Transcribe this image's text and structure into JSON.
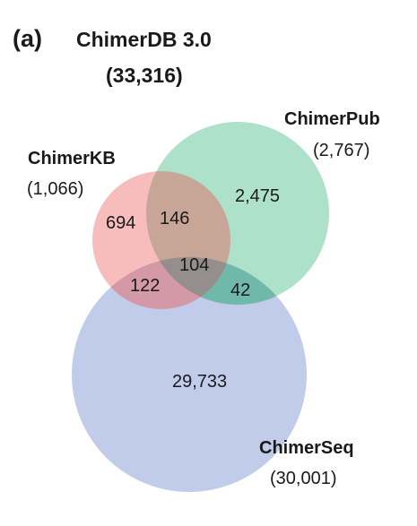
{
  "panel_label": "(a)",
  "title": {
    "line1": "ChimerDB 3.0",
    "line2": "(33,316)"
  },
  "colors": {
    "kb": "#f4a3a4",
    "pub": "#8fd5b4",
    "seq": "#a8b9e0",
    "text": "#1a1a1a"
  },
  "sets": {
    "kb": {
      "name": "ChimerKB",
      "total": "(1,066)"
    },
    "pub": {
      "name": "ChimerPub",
      "total": "(2,767)"
    },
    "seq": {
      "name": "ChimerSeq",
      "total": "(30,001)"
    }
  },
  "regions": {
    "kb_only": "694",
    "kb_pub": "146",
    "pub_only": "2,475",
    "all_three": "104",
    "kb_seq": "122",
    "pub_seq": "42",
    "seq_only": "29,733"
  }
}
